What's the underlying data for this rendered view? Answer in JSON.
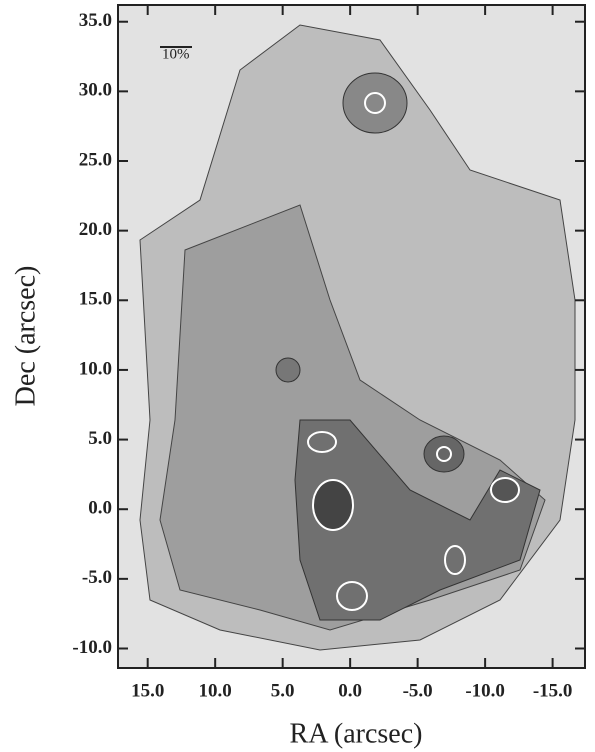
{
  "chart_data": {
    "type": "image",
    "x_label": "RA (arcsec)",
    "y_label": "Dec (arcsec)",
    "annotation": "10%",
    "xlim": [
      17.2,
      -17.4
    ],
    "ylim": [
      -11.4,
      36.2
    ],
    "xticks": [
      {
        "value": 15,
        "label": "15.0"
      },
      {
        "value": 10,
        "label": "10.0"
      },
      {
        "value": 5,
        "label": "5.0"
      },
      {
        "value": 0,
        "label": "0.0"
      },
      {
        "value": -5,
        "label": "-5.0"
      },
      {
        "value": -10,
        "label": "-10.0"
      },
      {
        "value": -15,
        "label": "-15.0"
      }
    ],
    "yticks": [
      {
        "value": 35,
        "label": "35.0"
      },
      {
        "value": 30,
        "label": "30.0"
      },
      {
        "value": 25,
        "label": "25.0"
      },
      {
        "value": 20,
        "label": "20.0"
      },
      {
        "value": 15,
        "label": "15.0"
      },
      {
        "value": 10,
        "label": "10.0"
      },
      {
        "value": 5,
        "label": "5.0"
      },
      {
        "value": 0,
        "label": "0.0"
      },
      {
        "value": -5,
        "label": "-5.0"
      },
      {
        "value": -10,
        "label": "-10.0"
      }
    ]
  }
}
